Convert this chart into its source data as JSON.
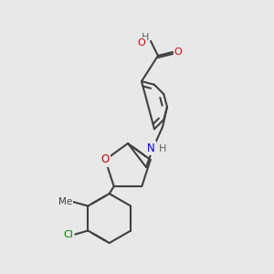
{
  "bg_color": "#e8e8e8",
  "bond_color": "#404040",
  "bond_width": 1.5,
  "atom_colors": {
    "O": "#cc0000",
    "N": "#0000cc",
    "Cl": "#008000",
    "C": "#404040",
    "H": "#606060"
  }
}
